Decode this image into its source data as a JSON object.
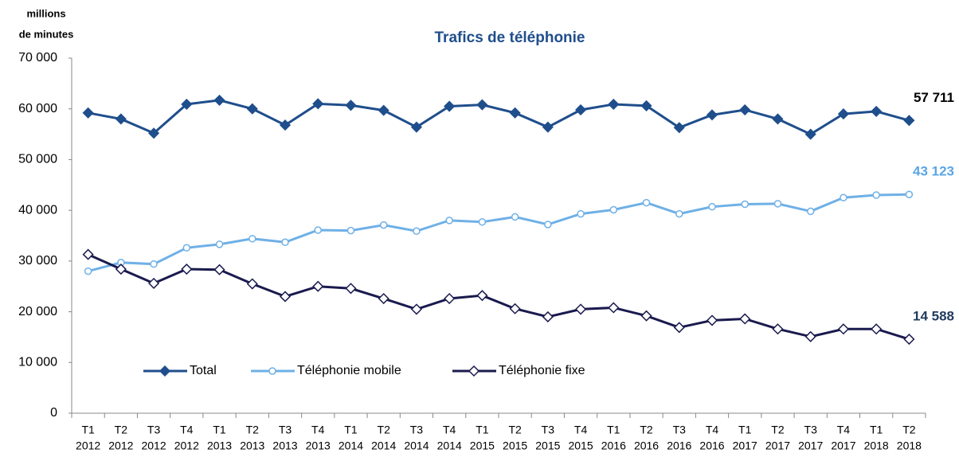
{
  "chart_data": {
    "type": "line",
    "title": "Trafics de téléphonie",
    "y_label": [
      "millions",
      "de minutes"
    ],
    "categories": [
      [
        "T1",
        "2012"
      ],
      [
        "T2",
        "2012"
      ],
      [
        "T3",
        "2012"
      ],
      [
        "T4",
        "2012"
      ],
      [
        "T1",
        "2013"
      ],
      [
        "T2",
        "2013"
      ],
      [
        "T3",
        "2013"
      ],
      [
        "T4",
        "2013"
      ],
      [
        "T1",
        "2014"
      ],
      [
        "T2",
        "2014"
      ],
      [
        "T3",
        "2014"
      ],
      [
        "T4",
        "2014"
      ],
      [
        "T1",
        "2015"
      ],
      [
        "T2",
        "2015"
      ],
      [
        "T3",
        "2015"
      ],
      [
        "T4",
        "2015"
      ],
      [
        "T1",
        "2016"
      ],
      [
        "T2",
        "2016"
      ],
      [
        "T3",
        "2016"
      ],
      [
        "T4",
        "2016"
      ],
      [
        "T1",
        "2017"
      ],
      [
        "T2",
        "2017"
      ],
      [
        "T3",
        "2017"
      ],
      [
        "T4",
        "2017"
      ],
      [
        "T1",
        "2018"
      ],
      [
        "T2",
        "2018"
      ]
    ],
    "series": [
      {
        "name": "Total",
        "color": "#1f4e8c",
        "marker": "diamond-filled",
        "values": [
          59200,
          58000,
          55200,
          60900,
          61700,
          60000,
          56800,
          61000,
          60700,
          59700,
          56400,
          60500,
          60800,
          59200,
          56400,
          59800,
          60900,
          60600,
          56300,
          58800,
          59800,
          58000,
          55000,
          59000,
          59500,
          57711
        ],
        "value_labels": [
          null,
          null,
          null,
          null,
          null,
          null,
          null,
          null,
          null,
          null,
          null,
          null,
          null,
          null,
          null,
          null,
          null,
          null,
          null,
          null,
          null,
          null,
          null,
          null,
          null,
          "57 711"
        ],
        "label_color": "#000000"
      },
      {
        "name": "Téléphonie mobile",
        "color": "#6fb0e6",
        "marker": "circle-open",
        "values": [
          28000,
          29700,
          29400,
          32600,
          33300,
          34400,
          33700,
          36100,
          36000,
          37100,
          35900,
          38000,
          37700,
          38700,
          37200,
          39300,
          40100,
          41500,
          39300,
          40700,
          41200,
          41300,
          39800,
          42500,
          43000,
          43123
        ],
        "value_labels": [
          null,
          null,
          null,
          null,
          null,
          null,
          null,
          null,
          null,
          null,
          null,
          null,
          null,
          null,
          null,
          null,
          null,
          null,
          null,
          null,
          null,
          null,
          null,
          null,
          null,
          "43 123"
        ],
        "label_color": "#5aa5e6"
      },
      {
        "name": "Téléphonie fixe",
        "color": "#1a1a4e",
        "marker": "diamond-open",
        "values": [
          31300,
          28400,
          25600,
          28400,
          28300,
          25500,
          23000,
          25000,
          24600,
          22600,
          20500,
          22600,
          23200,
          20600,
          19000,
          20500,
          20800,
          19200,
          16900,
          18300,
          18600,
          16600,
          15100,
          16600,
          16600,
          14588
        ],
        "value_labels": [
          null,
          null,
          null,
          null,
          null,
          null,
          null,
          null,
          null,
          null,
          null,
          null,
          null,
          null,
          null,
          null,
          null,
          null,
          null,
          null,
          null,
          null,
          null,
          null,
          null,
          "14 588"
        ],
        "label_color": "#1f3a5f"
      }
    ],
    "ylim": [
      0,
      70000
    ],
    "yticks": [
      0,
      {
        "value": 10000,
        "label": "10 000"
      },
      {
        "value": 20000,
        "label": "20 000"
      },
      {
        "value": 30000,
        "label": "30 000"
      },
      {
        "value": 40000,
        "label": "40 000"
      },
      {
        "value": 50000,
        "label": "50 000"
      },
      {
        "value": 60000,
        "label": "60 000"
      },
      {
        "value": 70000,
        "label": "70 000"
      }
    ],
    "grid": false,
    "legend": "bottom-left"
  }
}
